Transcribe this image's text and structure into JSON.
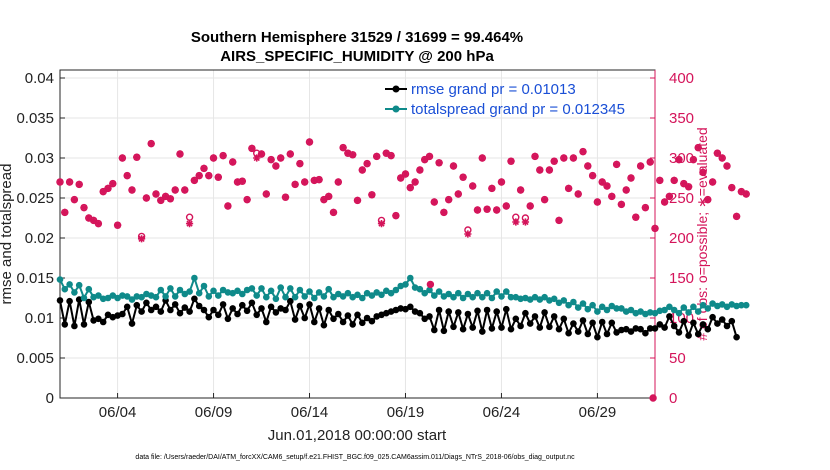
{
  "chart_data": {
    "type": "line",
    "title": "Southern Hemisphere 31529 / 31699 = 99.464%",
    "subtitle": "AIRS_SPECIFIC_HUMIDITY @ 200 hPa",
    "xlabel": "Jun.01,2018 00:00:00 start",
    "ylabel_left": "rmse and totalspread",
    "ylabel_right": "# of obs: o=possible; ∗=evaluated",
    "footnote": "data file: /Users/raeder/DAI/ATM_forcXX/CAM6_setup/f.e21.FHIST_BGC.f09_025.CAM6assim.011/Diags_NTrS_2018-06/obs_diag_output.nc",
    "x_ticks": [
      {
        "day": 4,
        "label": "06/04"
      },
      {
        "day": 9,
        "label": "06/09"
      },
      {
        "day": 14,
        "label": "06/14"
      },
      {
        "day": 19,
        "label": "06/19"
      },
      {
        "day": 24,
        "label": "06/24"
      },
      {
        "day": 29,
        "label": "06/29"
      }
    ],
    "xlim": [
      1,
      32
    ],
    "ylim_left": [
      0,
      0.041
    ],
    "ylim_right": [
      0,
      410
    ],
    "yticks_left": [
      "0",
      "0.005",
      "0.01",
      "0.015",
      "0.02",
      "0.025",
      "0.03",
      "0.035",
      "0.04"
    ],
    "yticks_right": [
      "0",
      "50",
      "100",
      "150",
      "200",
      "250",
      "300",
      "350",
      "400"
    ],
    "grid": true,
    "legend": [
      {
        "name": "rmse grand pr = 0.01013",
        "color": "#000000"
      },
      {
        "name": "totalspread grand pr = 0.012345",
        "color": "#0f8a8a"
      }
    ],
    "legend_position": "top-right",
    "series": [
      {
        "name": "rmse",
        "axis": "left",
        "color": "#000000",
        "x_start": 1.0,
        "x_step": 0.25,
        "values": [
          0.0122,
          0.0092,
          0.0121,
          0.009,
          0.0123,
          0.0092,
          0.012,
          0.0097,
          0.0099,
          0.0095,
          0.0104,
          0.0101,
          0.0103,
          0.0105,
          0.0114,
          0.0093,
          0.0116,
          0.0108,
          0.0119,
          0.011,
          0.0114,
          0.0108,
          0.0122,
          0.011,
          0.0117,
          0.0106,
          0.0113,
          0.0108,
          0.0124,
          0.0115,
          0.011,
          0.0101,
          0.011,
          0.0104,
          0.0117,
          0.0099,
          0.0112,
          0.0105,
          0.0116,
          0.0109,
          0.0119,
          0.0104,
          0.0112,
          0.0095,
          0.0114,
          0.0107,
          0.0112,
          0.011,
          0.0121,
          0.0098,
          0.0115,
          0.01,
          0.0117,
          0.0095,
          0.0112,
          0.0091,
          0.011,
          0.0099,
          0.0105,
          0.0095,
          0.0103,
          0.0092,
          0.0104,
          0.0094,
          0.01,
          0.0096,
          0.0102,
          0.0104,
          0.0106,
          0.0108,
          0.011,
          0.0112,
          0.0111,
          0.0114,
          0.0108,
          0.0106,
          0.0099,
          0.0102,
          0.0085,
          0.011,
          0.0084,
          0.0108,
          0.0089,
          0.0107,
          0.0086,
          0.0105,
          0.0088,
          0.0109,
          0.0083,
          0.011,
          0.0087,
          0.0108,
          0.0088,
          0.0111,
          0.0086,
          0.0099,
          0.009,
          0.0106,
          0.0093,
          0.0102,
          0.0088,
          0.0107,
          0.0089,
          0.0102,
          0.0086,
          0.0099,
          0.0081,
          0.0093,
          0.0083,
          0.0097,
          0.008,
          0.0094,
          0.0076,
          0.0095,
          0.008,
          0.0094,
          0.0082,
          0.0085,
          0.0086,
          0.0083,
          0.0087,
          0.0086,
          0.0081,
          0.0087,
          0.0087,
          0.0092,
          0.0088,
          0.0102,
          0.009,
          0.0082,
          0.0096,
          0.0078,
          0.0094,
          0.008,
          0.0092,
          0.0086,
          0.0101,
          0.0093,
          0.0098,
          0.009,
          0.0096,
          0.0076
        ]
      },
      {
        "name": "totalspread",
        "axis": "left",
        "color": "#0f8a8a",
        "x_start": 1.0,
        "x_step": 0.25,
        "values": [
          0.0148,
          0.0136,
          0.0142,
          0.0132,
          0.0141,
          0.0125,
          0.0136,
          0.0126,
          0.0128,
          0.0124,
          0.0125,
          0.0128,
          0.0125,
          0.0128,
          0.0127,
          0.0123,
          0.0127,
          0.0126,
          0.013,
          0.0128,
          0.0126,
          0.0135,
          0.0127,
          0.0137,
          0.0127,
          0.0135,
          0.013,
          0.0133,
          0.015,
          0.0131,
          0.014,
          0.0127,
          0.0134,
          0.0128,
          0.0135,
          0.0132,
          0.0131,
          0.0134,
          0.013,
          0.0135,
          0.0137,
          0.0128,
          0.0137,
          0.0126,
          0.0134,
          0.0124,
          0.0138,
          0.0126,
          0.0137,
          0.0126,
          0.0135,
          0.0127,
          0.0133,
          0.0125,
          0.0132,
          0.0127,
          0.0136,
          0.0126,
          0.013,
          0.0127,
          0.0131,
          0.0126,
          0.0129,
          0.0125,
          0.0131,
          0.0128,
          0.0132,
          0.0129,
          0.0134,
          0.0131,
          0.0135,
          0.014,
          0.0142,
          0.015,
          0.0138,
          0.0136,
          0.0131,
          0.0135,
          0.0128,
          0.0133,
          0.0127,
          0.013,
          0.0126,
          0.0131,
          0.0125,
          0.013,
          0.0126,
          0.0131,
          0.0126,
          0.0131,
          0.0125,
          0.0133,
          0.0127,
          0.0133,
          0.0126,
          0.0126,
          0.0124,
          0.0125,
          0.0123,
          0.0126,
          0.0123,
          0.0126,
          0.0122,
          0.0124,
          0.0119,
          0.0122,
          0.0116,
          0.012,
          0.0113,
          0.0118,
          0.0111,
          0.0116,
          0.0108,
          0.0114,
          0.011,
          0.0115,
          0.0112,
          0.0112,
          0.0108,
          0.011,
          0.0106,
          0.0108,
          0.0105,
          0.0107,
          0.0106,
          0.0109,
          0.011,
          0.0114,
          0.011,
          0.0106,
          0.0113,
          0.0107,
          0.0114,
          0.0108,
          0.0116,
          0.0112,
          0.0118,
          0.0115,
          0.0117,
          0.0114,
          0.0117,
          0.0115,
          0.0116,
          0.0116
        ]
      },
      {
        "name": "obs possible",
        "axis": "right",
        "color": "#d4145a",
        "marker": "o",
        "x_start": 1.0,
        "x_step": 0.25,
        "values": [
          270,
          232,
          270,
          248,
          267,
          238,
          225,
          222,
          218,
          258,
          262,
          268,
          216,
          300,
          278,
          260,
          301,
          202,
          250,
          318,
          255,
          247,
          252,
          249,
          260,
          305,
          260,
          226,
          272,
          278,
          287,
          278,
          300,
          276,
          303,
          240,
          295,
          270,
          271,
          248,
          312,
          306,
          305,
          255,
          298,
          290,
          300,
          251,
          305,
          267,
          293,
          270,
          320,
          272,
          273,
          248,
          252,
          232,
          270,
          313,
          306,
          304,
          247,
          285,
          293,
          254,
          302,
          222,
          306,
          303,
          228,
          275,
          280,
          263,
          270,
          285,
          298,
          302,
          245,
          294,
          232,
          248,
          290,
          255,
          276,
          210,
          265,
          235,
          300,
          236,
          262,
          235,
          270,
          240,
          296,
          226,
          260,
          225,
          240,
          302,
          285,
          248,
          285,
          296,
          222,
          300,
          262,
          300,
          255,
          308,
          290,
          278,
          245,
          270,
          265,
          252,
          292,
          242,
          260,
          275,
          226,
          290,
          238,
          295,
          212,
          272,
          245,
          252,
          272,
          298,
          268,
          264,
          298,
          313,
          282,
          248,
          270,
          306,
          300,
          290,
          263,
          227,
          258,
          255
        ]
      },
      {
        "name": "obs evaluated",
        "axis": "right",
        "color": "#d4145a",
        "marker": "*",
        "x_start": 1.0,
        "x_step": 0.25,
        "values": [
          270,
          232,
          270,
          248,
          267,
          238,
          225,
          222,
          218,
          258,
          262,
          268,
          216,
          300,
          278,
          260,
          301,
          199,
          250,
          318,
          255,
          247,
          252,
          249,
          260,
          305,
          260,
          218,
          272,
          278,
          287,
          278,
          300,
          276,
          303,
          240,
          295,
          270,
          271,
          248,
          312,
          300,
          305,
          255,
          298,
          290,
          300,
          251,
          305,
          267,
          293,
          270,
          320,
          272,
          273,
          248,
          252,
          232,
          270,
          313,
          306,
          304,
          247,
          285,
          293,
          254,
          302,
          218,
          306,
          303,
          228,
          275,
          280,
          263,
          270,
          285,
          298,
          302,
          245,
          294,
          232,
          248,
          290,
          255,
          276,
          205,
          265,
          235,
          300,
          236,
          262,
          235,
          270,
          240,
          296,
          220,
          260,
          220,
          240,
          302,
          285,
          248,
          285,
          296,
          222,
          300,
          262,
          300,
          255,
          308,
          290,
          278,
          245,
          270,
          265,
          252,
          292,
          242,
          260,
          275,
          226,
          290,
          238,
          295,
          212,
          272,
          245,
          252,
          272,
          298,
          268,
          264,
          298,
          313,
          282,
          248,
          270,
          306,
          300,
          290,
          263,
          227,
          258,
          255
        ]
      }
    ],
    "extra_points": [
      {
        "x": 20.3,
        "value": 142,
        "axis": "right",
        "marker": "o"
      },
      {
        "x": 31.9,
        "value": 0,
        "axis": "right",
        "marker": "o"
      }
    ]
  }
}
